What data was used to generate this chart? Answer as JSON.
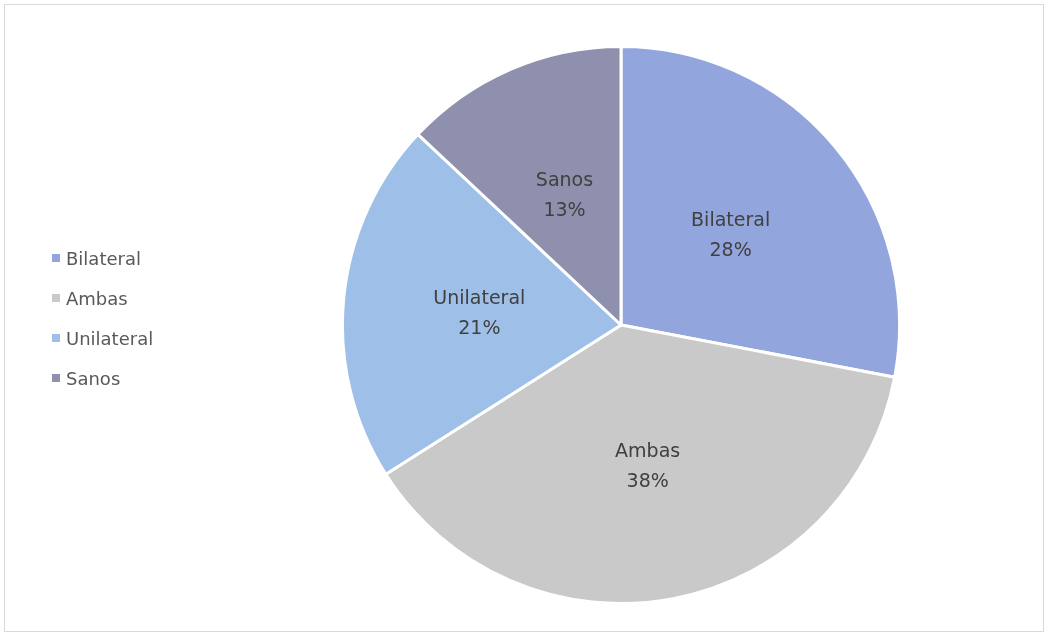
{
  "chart_data": {
    "type": "pie",
    "categories": [
      "Bilateral",
      "Ambas",
      "Unilateral",
      "Sanos"
    ],
    "values": [
      28,
      38,
      21,
      13
    ],
    "value_labels": [
      "28%",
      "38%",
      "21%",
      "13%"
    ],
    "colors": [
      "#92a6dd",
      "#c9c9c9",
      "#9ec0e8",
      "#8e90ad"
    ],
    "legend": "left"
  }
}
